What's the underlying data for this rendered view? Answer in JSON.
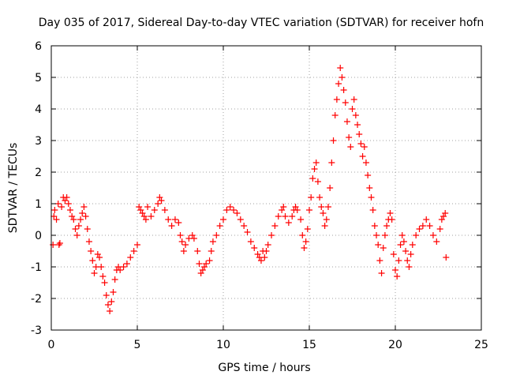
{
  "chart_data": {
    "type": "scatter",
    "title": "Day 035 of 2017, Sidereal Day-to-day VTEC variation (SDTVAR) for receiver hofn",
    "xlabel": "GPS time / hours",
    "ylabel": "SDTVAR / TECUs",
    "xlim": [
      0,
      25
    ],
    "ylim": [
      -3,
      6
    ],
    "xticks": [
      0,
      5,
      10,
      15,
      20,
      25
    ],
    "yticks": [
      -3,
      -2,
      -1,
      0,
      1,
      2,
      3,
      4,
      5,
      6
    ],
    "grid": true,
    "marker": "+",
    "color": "#ff0000",
    "series": [
      {
        "name": "SDTVAR",
        "points": [
          [
            0.1,
            -0.3
          ],
          [
            0.15,
            0.6
          ],
          [
            0.2,
            0.8
          ],
          [
            0.3,
            0.5
          ],
          [
            0.4,
            1.0
          ],
          [
            0.45,
            -0.3
          ],
          [
            0.5,
            -0.25
          ],
          [
            0.6,
            0.9
          ],
          [
            0.7,
            1.2
          ],
          [
            0.8,
            1.1
          ],
          [
            0.9,
            1.2
          ],
          [
            1.0,
            1.0
          ],
          [
            1.1,
            0.8
          ],
          [
            1.2,
            0.6
          ],
          [
            1.3,
            0.5
          ],
          [
            1.4,
            0.2
          ],
          [
            1.5,
            0.0
          ],
          [
            1.6,
            0.3
          ],
          [
            1.7,
            0.5
          ],
          [
            1.8,
            0.7
          ],
          [
            1.9,
            0.9
          ],
          [
            2.0,
            0.6
          ],
          [
            2.1,
            0.2
          ],
          [
            2.2,
            -0.2
          ],
          [
            2.3,
            -0.5
          ],
          [
            2.4,
            -0.8
          ],
          [
            2.5,
            -1.2
          ],
          [
            2.6,
            -1.0
          ],
          [
            2.7,
            -0.6
          ],
          [
            2.8,
            -0.7
          ],
          [
            2.9,
            -1.0
          ],
          [
            3.0,
            -1.3
          ],
          [
            3.1,
            -1.5
          ],
          [
            3.2,
            -1.9
          ],
          [
            3.3,
            -2.2
          ],
          [
            3.4,
            -2.4
          ],
          [
            3.5,
            -2.1
          ],
          [
            3.6,
            -1.8
          ],
          [
            3.7,
            -1.4
          ],
          [
            3.8,
            -1.1
          ],
          [
            3.9,
            -1.0
          ],
          [
            4.0,
            -1.1
          ],
          [
            4.2,
            -1.0
          ],
          [
            4.4,
            -0.9
          ],
          [
            4.6,
            -0.7
          ],
          [
            4.8,
            -0.5
          ],
          [
            5.0,
            -0.3
          ],
          [
            5.1,
            0.9
          ],
          [
            5.2,
            0.8
          ],
          [
            5.3,
            0.7
          ],
          [
            5.4,
            0.6
          ],
          [
            5.5,
            0.5
          ],
          [
            5.6,
            0.9
          ],
          [
            5.8,
            0.6
          ],
          [
            6.0,
            0.8
          ],
          [
            6.2,
            1.0
          ],
          [
            6.3,
            1.2
          ],
          [
            6.4,
            1.1
          ],
          [
            6.6,
            0.8
          ],
          [
            6.8,
            0.5
          ],
          [
            7.0,
            0.3
          ],
          [
            7.2,
            0.5
          ],
          [
            7.4,
            0.4
          ],
          [
            7.5,
            0.0
          ],
          [
            7.6,
            -0.2
          ],
          [
            7.7,
            -0.5
          ],
          [
            7.8,
            -0.3
          ],
          [
            8.0,
            -0.1
          ],
          [
            8.2,
            0.0
          ],
          [
            8.3,
            -0.1
          ],
          [
            8.5,
            -0.5
          ],
          [
            8.6,
            -0.9
          ],
          [
            8.7,
            -1.2
          ],
          [
            8.8,
            -1.1
          ],
          [
            8.9,
            -1.0
          ],
          [
            9.0,
            -0.9
          ],
          [
            9.2,
            -0.8
          ],
          [
            9.3,
            -0.5
          ],
          [
            9.4,
            -0.2
          ],
          [
            9.6,
            0.0
          ],
          [
            9.8,
            0.3
          ],
          [
            10.0,
            0.5
          ],
          [
            10.2,
            0.8
          ],
          [
            10.4,
            0.9
          ],
          [
            10.6,
            0.8
          ],
          [
            10.8,
            0.7
          ],
          [
            11.0,
            0.5
          ],
          [
            11.2,
            0.3
          ],
          [
            11.4,
            0.1
          ],
          [
            11.6,
            -0.2
          ],
          [
            11.8,
            -0.4
          ],
          [
            12.0,
            -0.6
          ],
          [
            12.1,
            -0.7
          ],
          [
            12.2,
            -0.8
          ],
          [
            12.3,
            -0.5
          ],
          [
            12.4,
            -0.7
          ],
          [
            12.5,
            -0.5
          ],
          [
            12.6,
            -0.3
          ],
          [
            12.8,
            0.0
          ],
          [
            13.0,
            0.3
          ],
          [
            13.2,
            0.6
          ],
          [
            13.4,
            0.8
          ],
          [
            13.5,
            0.9
          ],
          [
            13.6,
            0.6
          ],
          [
            13.8,
            0.4
          ],
          [
            14.0,
            0.6
          ],
          [
            14.1,
            0.8
          ],
          [
            14.2,
            0.9
          ],
          [
            14.3,
            0.8
          ],
          [
            14.5,
            0.5
          ],
          [
            14.6,
            0.0
          ],
          [
            14.7,
            -0.4
          ],
          [
            14.8,
            -0.2
          ],
          [
            14.9,
            0.2
          ],
          [
            15.0,
            0.8
          ],
          [
            15.1,
            1.2
          ],
          [
            15.2,
            1.8
          ],
          [
            15.3,
            2.1
          ],
          [
            15.4,
            2.3
          ],
          [
            15.5,
            1.7
          ],
          [
            15.6,
            1.2
          ],
          [
            15.7,
            0.9
          ],
          [
            15.8,
            0.7
          ],
          [
            15.9,
            0.3
          ],
          [
            16.0,
            0.5
          ],
          [
            16.1,
            0.9
          ],
          [
            16.2,
            1.5
          ],
          [
            16.3,
            2.3
          ],
          [
            16.4,
            3.0
          ],
          [
            16.5,
            3.8
          ],
          [
            16.6,
            4.3
          ],
          [
            16.7,
            4.8
          ],
          [
            16.8,
            5.3
          ],
          [
            16.9,
            5.0
          ],
          [
            17.0,
            4.6
          ],
          [
            17.1,
            4.2
          ],
          [
            17.2,
            3.6
          ],
          [
            17.3,
            3.1
          ],
          [
            17.4,
            2.8
          ],
          [
            17.5,
            4.0
          ],
          [
            17.6,
            4.3
          ],
          [
            17.7,
            3.8
          ],
          [
            17.8,
            3.5
          ],
          [
            17.9,
            3.2
          ],
          [
            18.0,
            2.9
          ],
          [
            18.1,
            2.5
          ],
          [
            18.2,
            2.8
          ],
          [
            18.3,
            2.3
          ],
          [
            18.4,
            1.9
          ],
          [
            18.5,
            1.5
          ],
          [
            18.6,
            1.2
          ],
          [
            18.7,
            0.8
          ],
          [
            18.8,
            0.3
          ],
          [
            18.9,
            0.0
          ],
          [
            19.0,
            -0.3
          ],
          [
            19.1,
            -0.8
          ],
          [
            19.2,
            -1.2
          ],
          [
            19.3,
            -0.4
          ],
          [
            19.4,
            0.0
          ],
          [
            19.5,
            0.3
          ],
          [
            19.6,
            0.5
          ],
          [
            19.7,
            0.7
          ],
          [
            19.8,
            0.5
          ],
          [
            19.9,
            -0.6
          ],
          [
            20.0,
            -1.1
          ],
          [
            20.1,
            -1.3
          ],
          [
            20.2,
            -0.8
          ],
          [
            20.3,
            -0.3
          ],
          [
            20.4,
            0.0
          ],
          [
            20.5,
            -0.2
          ],
          [
            20.6,
            -0.5
          ],
          [
            20.7,
            -0.8
          ],
          [
            20.8,
            -1.0
          ],
          [
            20.9,
            -0.6
          ],
          [
            21.0,
            -0.3
          ],
          [
            21.2,
            0.0
          ],
          [
            21.4,
            0.2
          ],
          [
            21.6,
            0.3
          ],
          [
            21.8,
            0.5
          ],
          [
            22.0,
            0.3
          ],
          [
            22.2,
            0.0
          ],
          [
            22.4,
            -0.2
          ],
          [
            22.6,
            0.2
          ],
          [
            22.7,
            0.5
          ],
          [
            22.8,
            0.6
          ],
          [
            22.9,
            0.7
          ],
          [
            22.95,
            -0.7
          ]
        ]
      }
    ]
  }
}
